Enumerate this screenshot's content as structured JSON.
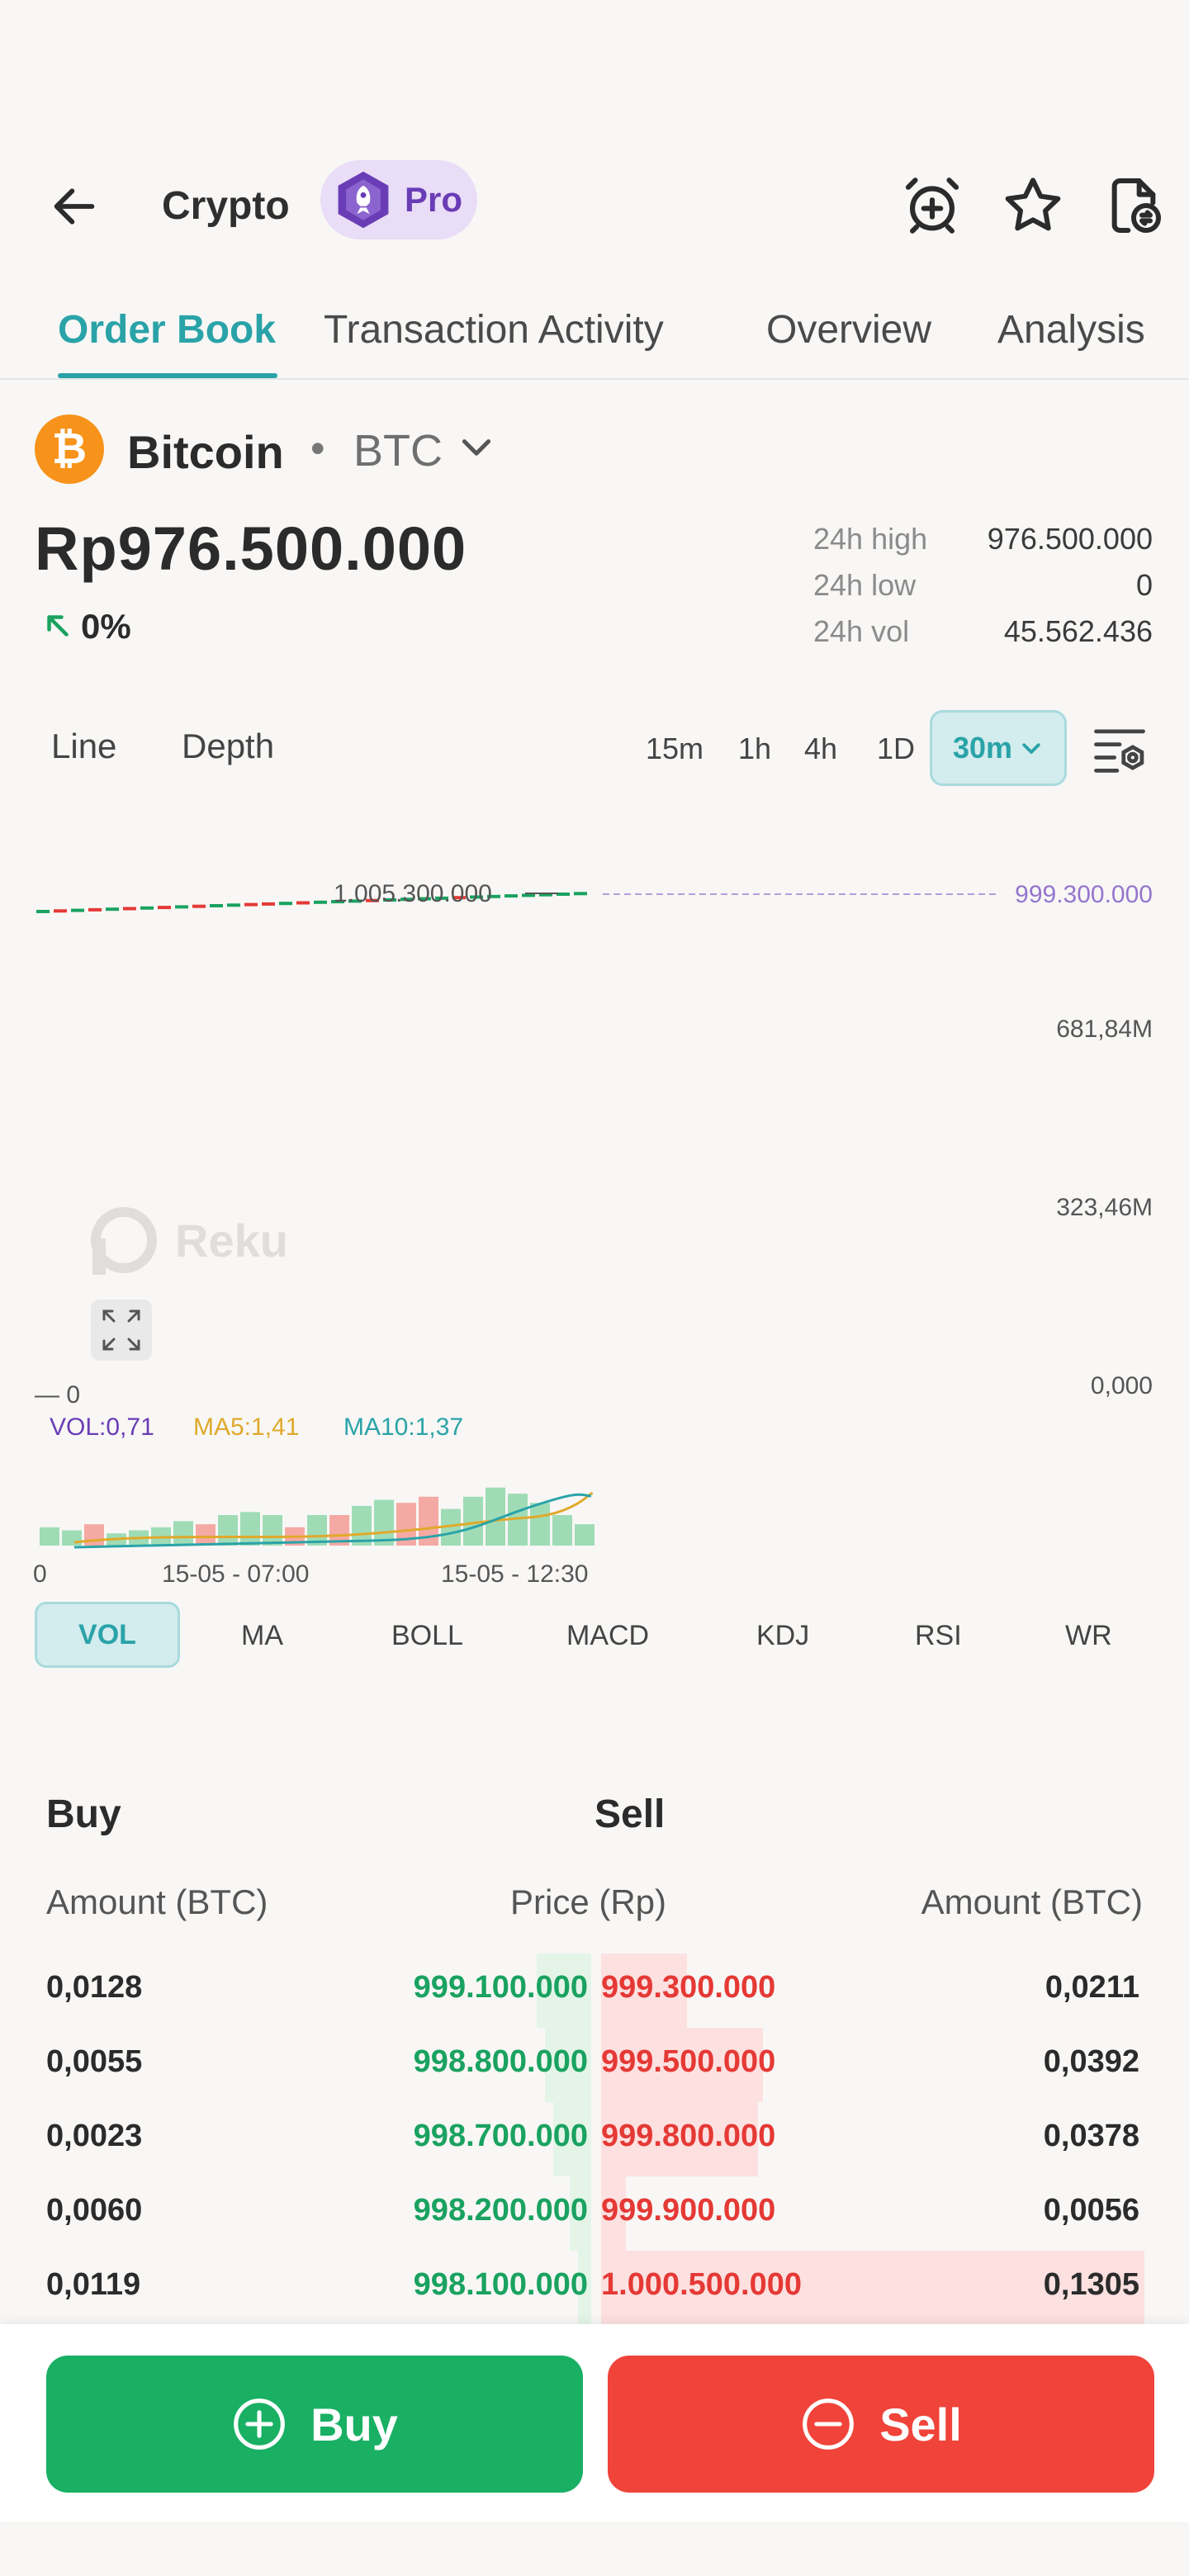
{
  "header": {
    "title": "Crypto",
    "pro_label": "Pro",
    "icons": [
      "back-arrow-icon",
      "price-alert-icon",
      "star-icon",
      "coin-swap-icon"
    ]
  },
  "tabs": [
    {
      "label": "Order Book",
      "active": true
    },
    {
      "label": "Transaction Activity",
      "active": false
    },
    {
      "label": "Overview",
      "active": false
    },
    {
      "label": "Analysis",
      "active": false
    }
  ],
  "coin": {
    "name": "Bitcoin",
    "separator": "•",
    "symbol": "BTC",
    "logo_glyph": "₿",
    "price": "Rp976.500.000",
    "change": "0%",
    "stats": [
      {
        "label": "24h high",
        "value": "976.500.000"
      },
      {
        "label": "24h low",
        "value": "0"
      },
      {
        "label": "24h vol",
        "value": "45.562.436"
      }
    ]
  },
  "chart_controls": {
    "types": [
      "Line",
      "Depth"
    ],
    "timeframes": [
      "15m",
      "1h",
      "4h",
      "1D"
    ],
    "active_timeframe": "30m"
  },
  "chart": {
    "price_marker": "1.005.300.000",
    "last_price_label": "999.300.000",
    "right_axis": [
      "681,84M",
      "323,46M",
      "0,000"
    ],
    "low_label": "— 0",
    "watermark": "Reku",
    "vol_label": "VOL:0,71",
    "ma5_label": "MA5:1,41",
    "ma10_label": "MA10:1,37",
    "x_axis": [
      "0",
      "15-05 - 07:00",
      "15-05 - 12:30"
    ],
    "colors": {
      "up": "#1aa260",
      "down": "#e53935",
      "ma5": "#e0a92b",
      "ma10": "#2aa3a8",
      "vol_label": "#6a3db6"
    }
  },
  "indicators": {
    "active": "VOL",
    "items": [
      "MA",
      "BOLL",
      "MACD",
      "KDJ",
      "RSI",
      "WR"
    ]
  },
  "order_book": {
    "buy_title": "Buy",
    "sell_title": "Sell",
    "col_buy_amount": "Amount (BTC)",
    "col_price": "Price (Rp)",
    "col_sell_amount": "Amount (BTC)",
    "rows": [
      {
        "buy_amount": "0,0128",
        "buy_price": "999.100.000",
        "sell_price": "999.300.000",
        "sell_amount": "0,0211"
      },
      {
        "buy_amount": "0,0055",
        "buy_price": "998.800.000",
        "sell_price": "999.500.000",
        "sell_amount": "0,0392"
      },
      {
        "buy_amount": "0,0023",
        "buy_price": "998.700.000",
        "sell_price": "999.800.000",
        "sell_amount": "0,0378"
      },
      {
        "buy_amount": "0,0060",
        "buy_price": "998.200.000",
        "sell_price": "999.900.000",
        "sell_amount": "0,0056"
      },
      {
        "buy_amount": "0,0119",
        "buy_price": "998.100.000",
        "sell_price": "1.000.500.000",
        "sell_amount": "0,1305"
      }
    ]
  },
  "actions": {
    "buy_label": "Buy",
    "sell_label": "Sell"
  }
}
